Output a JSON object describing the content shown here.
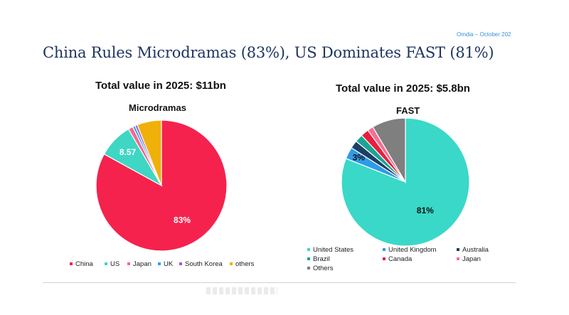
{
  "header": {
    "source": "Omdia – October 202",
    "title": "China Rules Microdramas (83%), US Dominates FAST (81%)"
  },
  "chart_data": [
    {
      "type": "pie",
      "total_label": "Total value in 2025: $11bn",
      "title": "Microdramas",
      "slices": [
        {
          "name": "China",
          "value": 83,
          "label": "83%",
          "color": "#f5224e"
        },
        {
          "name": "US",
          "value": 8.57,
          "label": "8.57",
          "color": "#3fd6c4"
        },
        {
          "name": "Japan",
          "value": 1.2,
          "label": "",
          "color": "#f46a8e"
        },
        {
          "name": "UK",
          "value": 0.6,
          "label": "",
          "color": "#2ea3e6"
        },
        {
          "name": "South Korea",
          "value": 0.6,
          "label": "",
          "color": "#9b59e0"
        },
        {
          "name": "others",
          "value": 6.03,
          "label": "",
          "color": "#f0b00a"
        }
      ],
      "legend_position": "bottom"
    },
    {
      "type": "pie",
      "total_label": "Total value in 2025: $5.8bn",
      "title": "FAST",
      "slices": [
        {
          "name": "United States",
          "value": 81,
          "label": "81%",
          "color": "#3ad8c8"
        },
        {
          "name": "United Kingdom",
          "value": 3,
          "label": "3%",
          "color": "#2f9be8"
        },
        {
          "name": "Australia",
          "value": 2,
          "label": "",
          "color": "#1b3f66"
        },
        {
          "name": "Brazil",
          "value": 2,
          "label": "",
          "color": "#1aa594"
        },
        {
          "name": "Canada",
          "value": 2,
          "label": "",
          "color": "#e5203e"
        },
        {
          "name": "Japan",
          "value": 1.5,
          "label": "",
          "color": "#f66f95"
        },
        {
          "name": "Others",
          "value": 8.5,
          "label": "",
          "color": "#7f7f7f"
        }
      ],
      "legend_position": "bottom"
    }
  ]
}
